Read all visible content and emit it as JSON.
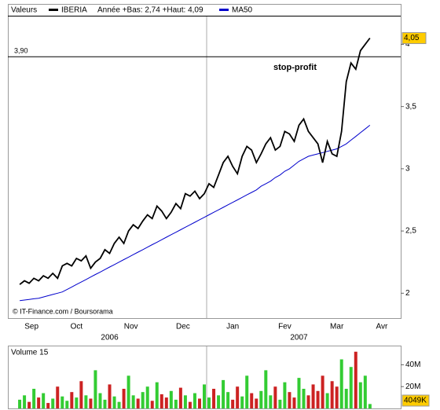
{
  "chart_data": [
    {
      "type": "line",
      "legend_label": "Valeurs",
      "range_note": "Année +Bas: 2,74 +Haut: 4,09",
      "annotation": "stop-profit",
      "credit": "© IT-Finance.com / Boursorama",
      "series": [
        {
          "name": "IBERIA",
          "color": "#000000",
          "last_label": "4,05",
          "values": [
            2.07,
            2.1,
            2.08,
            2.12,
            2.1,
            2.14,
            2.12,
            2.16,
            2.12,
            2.22,
            2.24,
            2.22,
            2.28,
            2.26,
            2.3,
            2.2,
            2.25,
            2.28,
            2.35,
            2.32,
            2.4,
            2.45,
            2.4,
            2.5,
            2.55,
            2.52,
            2.58,
            2.63,
            2.6,
            2.7,
            2.66,
            2.6,
            2.65,
            2.72,
            2.68,
            2.8,
            2.78,
            2.82,
            2.76,
            2.8,
            2.88,
            2.85,
            2.95,
            3.05,
            3.1,
            3.02,
            2.96,
            3.1,
            3.18,
            3.15,
            3.05,
            3.12,
            3.2,
            3.25,
            3.15,
            3.18,
            3.3,
            3.28,
            3.22,
            3.35,
            3.4,
            3.3,
            3.25,
            3.2,
            3.05,
            3.22,
            3.12,
            3.1,
            3.3,
            3.7,
            3.85,
            3.8,
            3.95,
            4.0,
            4.05
          ]
        },
        {
          "name": "MA50",
          "color": "#0000cc",
          "values": [
            1.94,
            1.945,
            1.95,
            1.955,
            1.96,
            1.97,
            1.98,
            1.99,
            2.0,
            2.01,
            2.03,
            2.05,
            2.07,
            2.09,
            2.11,
            2.13,
            2.15,
            2.17,
            2.19,
            2.21,
            2.23,
            2.25,
            2.27,
            2.29,
            2.31,
            2.33,
            2.35,
            2.37,
            2.39,
            2.41,
            2.43,
            2.45,
            2.47,
            2.49,
            2.51,
            2.53,
            2.55,
            2.57,
            2.59,
            2.61,
            2.63,
            2.65,
            2.67,
            2.69,
            2.71,
            2.73,
            2.75,
            2.77,
            2.79,
            2.81,
            2.83,
            2.86,
            2.88,
            2.9,
            2.93,
            2.95,
            2.98,
            3.0,
            3.03,
            3.06,
            3.08,
            3.1,
            3.11,
            3.12,
            3.13,
            3.14,
            3.15,
            3.16,
            3.18,
            3.2,
            3.23,
            3.26,
            3.29,
            3.32,
            3.35
          ]
        }
      ],
      "hline": {
        "value": 3.9,
        "label": "3,90"
      },
      "ylim": [
        1.8,
        4.23
      ],
      "yticks": [
        2,
        {
          "value": 2.5,
          "label": "2,5"
        },
        3,
        {
          "value": 3.5,
          "label": "3,5"
        },
        4
      ],
      "xlim": [
        -2.5,
        80.5
      ],
      "xticks": [
        {
          "value": 2.5,
          "label": "Sep"
        },
        {
          "value": 12,
          "label": "Oct"
        },
        {
          "value": 23.5,
          "label": "Nov"
        },
        {
          "value": 34.5,
          "label": "Dec"
        },
        {
          "value": 45,
          "label": "Jan"
        },
        {
          "value": 56,
          "label": "Fev"
        },
        {
          "value": 67,
          "label": "Mar"
        },
        {
          "value": 76.5,
          "label": "Avr"
        }
      ],
      "year_ticks": [
        {
          "value": 19,
          "label": "2006"
        },
        {
          "value": 59,
          "label": "2007"
        }
      ],
      "xgrid": [
        39.5
      ]
    },
    {
      "type": "bar",
      "title": "Volume 15",
      "up_color": "#33cc33",
      "down_color": "#cc2222",
      "last_label": "4049K",
      "values": [
        8,
        12,
        6,
        18,
        10,
        14,
        5,
        9,
        20,
        11,
        7,
        15,
        10,
        25,
        12,
        9,
        35,
        14,
        8,
        22,
        11,
        6,
        18,
        30,
        12,
        9,
        15,
        20,
        7,
        24,
        13,
        10,
        16,
        8,
        19,
        12,
        6,
        14,
        9,
        22,
        10,
        18,
        12,
        26,
        15,
        8,
        20,
        11,
        30,
        14,
        9,
        16,
        35,
        12,
        20,
        8,
        24,
        15,
        10,
        28,
        18,
        12,
        22,
        16,
        30,
        14,
        25,
        20,
        45,
        18,
        38,
        52,
        24,
        30,
        4.049
      ],
      "ylim": [
        0,
        54
      ],
      "yticks": [
        {
          "value": 20,
          "label": "20M"
        },
        {
          "value": 40,
          "label": "40M"
        }
      ]
    }
  ]
}
